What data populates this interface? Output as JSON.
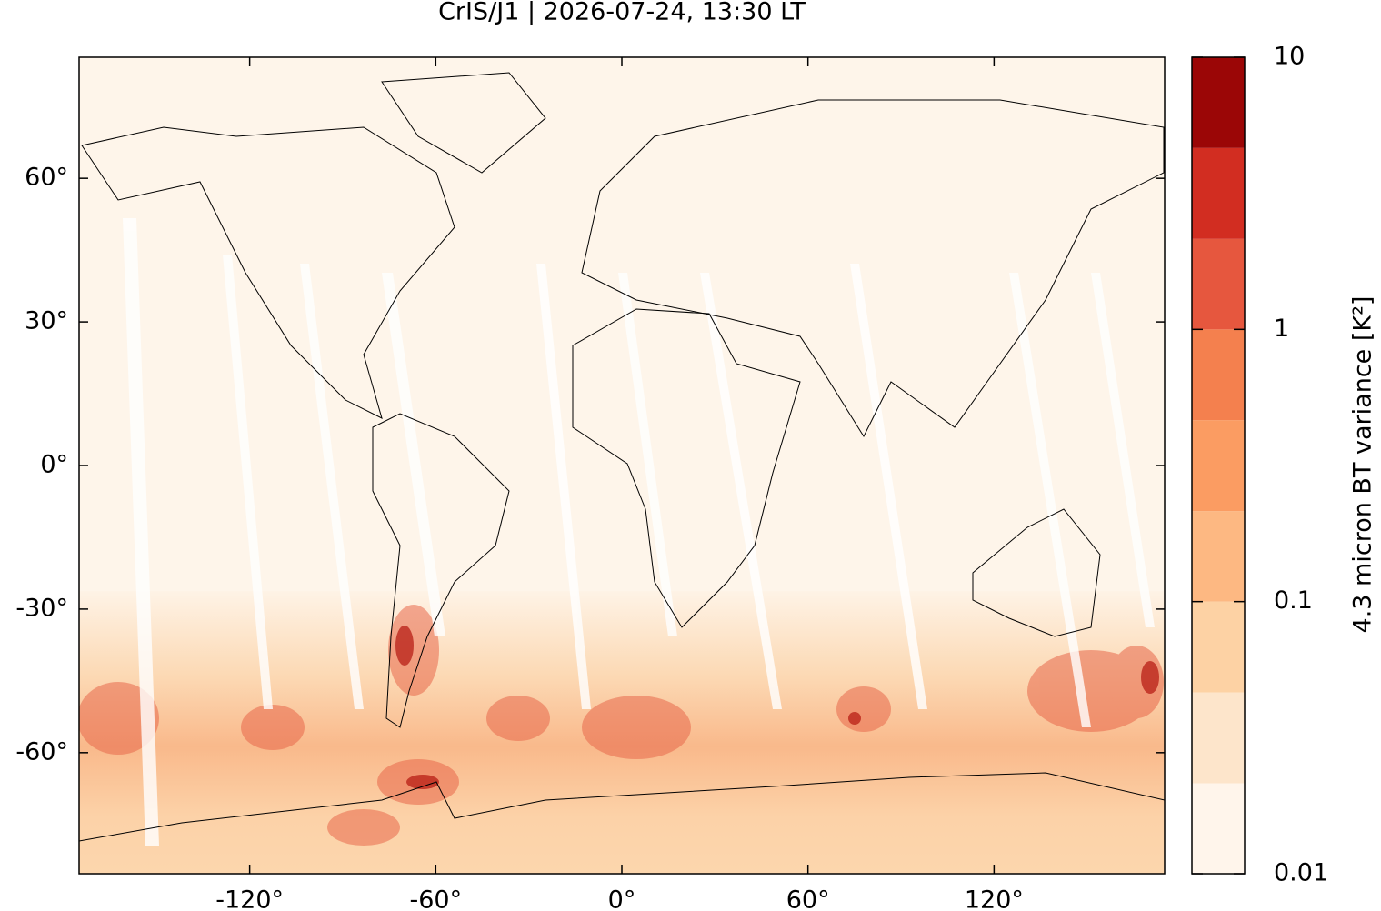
{
  "chart_data": {
    "type": "map",
    "title": "CrIS/J1 | 2026-07-24, 13:30 LT",
    "xlim": [
      -175,
      175
    ],
    "ylim": [
      -85.3,
      85.3
    ],
    "xticks": [
      {
        "value": -120,
        "label": "-120°"
      },
      {
        "value": -60,
        "label": "-60°"
      },
      {
        "value": 0,
        "label": "0°"
      },
      {
        "value": 60,
        "label": "60°"
      },
      {
        "value": 120,
        "label": "120°"
      }
    ],
    "yticks": [
      {
        "value": 60,
        "label": "60°"
      },
      {
        "value": 30,
        "label": "30°"
      },
      {
        "value": 0,
        "label": "0°"
      },
      {
        "value": -30,
        "label": "-30°"
      },
      {
        "value": -60,
        "label": "-60°"
      }
    ],
    "colorbar": {
      "label": "4.3 micron BT variance [K²]",
      "log": true,
      "lim": [
        0.01,
        10
      ],
      "ticks": [
        0.01,
        0.1,
        1,
        10
      ],
      "levels": [
        0.01,
        0.0215,
        0.0464,
        0.1,
        0.215,
        0.464,
        1,
        2.15,
        4.64,
        10
      ],
      "colors": [
        "#fff5eb",
        "#fde5cb",
        "#fdd2a4",
        "#fdb882",
        "#fb9c62",
        "#f4804e",
        "#e6573e",
        "#d22d21",
        "#9b0606"
      ]
    }
  }
}
